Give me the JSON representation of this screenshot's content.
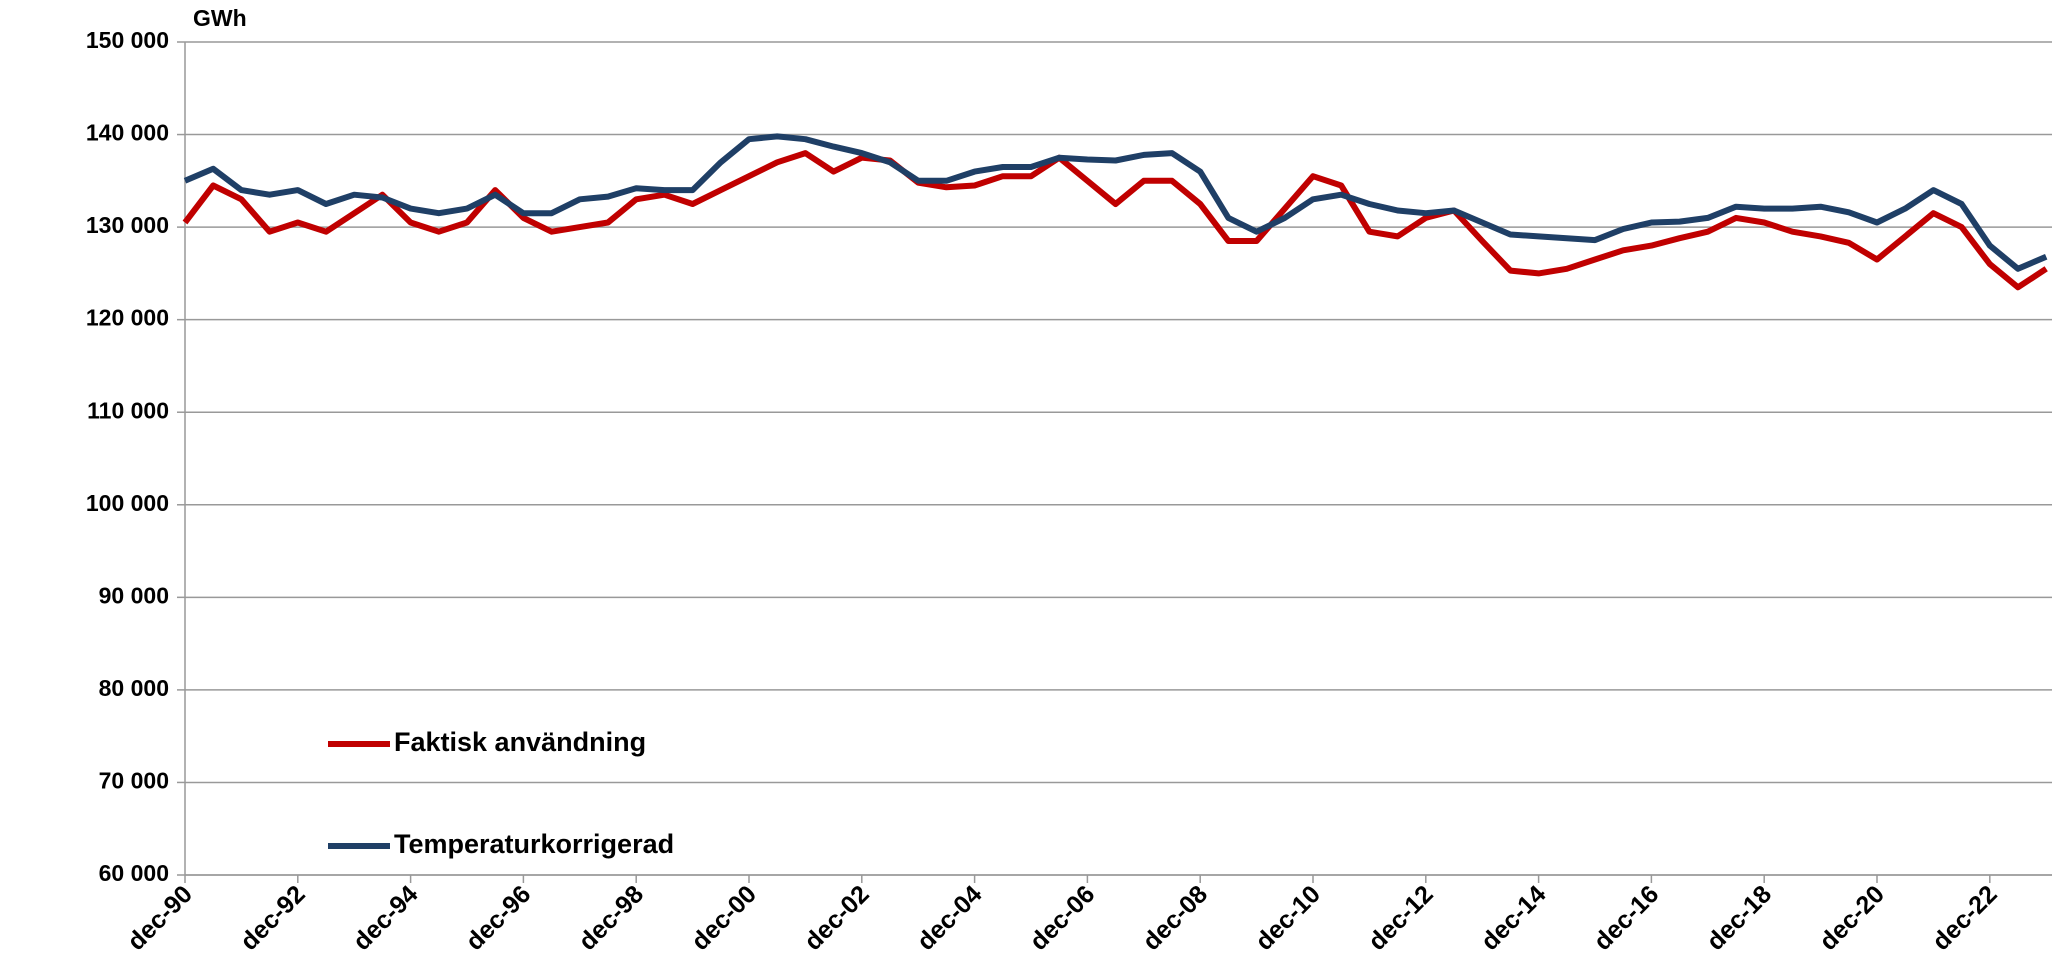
{
  "chart_data": {
    "type": "line",
    "y_label": "GWh",
    "categories": [
      "dec-90",
      null,
      null,
      null,
      "dec-92",
      null,
      null,
      null,
      "dec-94",
      null,
      null,
      null,
      "dec-96",
      null,
      null,
      null,
      "dec-98",
      null,
      null,
      null,
      "dec-00",
      null,
      null,
      null,
      "dec-02",
      null,
      null,
      null,
      "dec-04",
      null,
      null,
      null,
      "dec-06",
      null,
      null,
      null,
      "dec-08",
      null,
      null,
      null,
      "dec-10",
      null,
      null,
      null,
      "dec-12",
      null,
      null,
      null,
      "dec-14",
      null,
      null,
      null,
      "dec-16",
      null,
      null,
      null,
      "dec-18",
      null,
      null,
      null,
      "dec-20",
      null,
      null,
      null,
      "dec-22",
      null,
      null
    ],
    "series": [
      {
        "name": "Faktisk användning",
        "color": "#c00000",
        "values": [
          130500,
          134500,
          133000,
          129500,
          130500,
          129500,
          131500,
          133500,
          130500,
          129500,
          130500,
          134000,
          131000,
          129500,
          130000,
          130500,
          133000,
          133500,
          132500,
          134000,
          135500,
          137000,
          138000,
          136000,
          137500,
          137200,
          134800,
          134300,
          134500,
          135500,
          135500,
          137500,
          135000,
          132500,
          135000,
          135000,
          132500,
          128500,
          128500,
          132000,
          135500,
          134500,
          129500,
          129000,
          131000,
          131800,
          128500,
          125300,
          125000,
          125500,
          126500,
          127500,
          128000,
          128800,
          129500,
          131000,
          130500,
          129500,
          129000,
          128300,
          126500,
          129000,
          131500,
          130000,
          126000,
          123500,
          125500
        ]
      },
      {
        "name": "Temperaturkorrigerad",
        "color": "#1f3f66",
        "values": [
          135000,
          136300,
          134000,
          133500,
          134000,
          132500,
          133500,
          133200,
          132000,
          131500,
          132000,
          133500,
          131500,
          131500,
          133000,
          133300,
          134200,
          134000,
          134000,
          137000,
          139500,
          139800,
          139500,
          138700,
          138000,
          137000,
          135000,
          135000,
          136000,
          136500,
          136500,
          137500,
          137300,
          137200,
          137800,
          138000,
          136000,
          131000,
          129500,
          131000,
          133000,
          133500,
          132500,
          131800,
          131500,
          131800,
          130500,
          129200,
          129000,
          128800,
          128600,
          129800,
          130500,
          130600,
          131000,
          132200,
          132000,
          132000,
          132200,
          131600,
          130500,
          132000,
          134000,
          132500,
          128000,
          125500,
          126800
        ]
      }
    ],
    "ylim": [
      60000,
      150000
    ],
    "yticks": [
      {
        "value": 60000,
        "label": "60 000"
      },
      {
        "value": 70000,
        "label": "70 000"
      },
      {
        "value": 80000,
        "label": "80 000"
      },
      {
        "value": 90000,
        "label": "90 000"
      },
      {
        "value": 100000,
        "label": "100 000"
      },
      {
        "value": 110000,
        "label": "110 000"
      },
      {
        "value": 120000,
        "label": "120 000"
      },
      {
        "value": 130000,
        "label": "130 000"
      },
      {
        "value": 140000,
        "label": "140 000"
      },
      {
        "value": 150000,
        "label": "150 000"
      }
    ],
    "grid": true,
    "legend_position": "lower-left"
  }
}
